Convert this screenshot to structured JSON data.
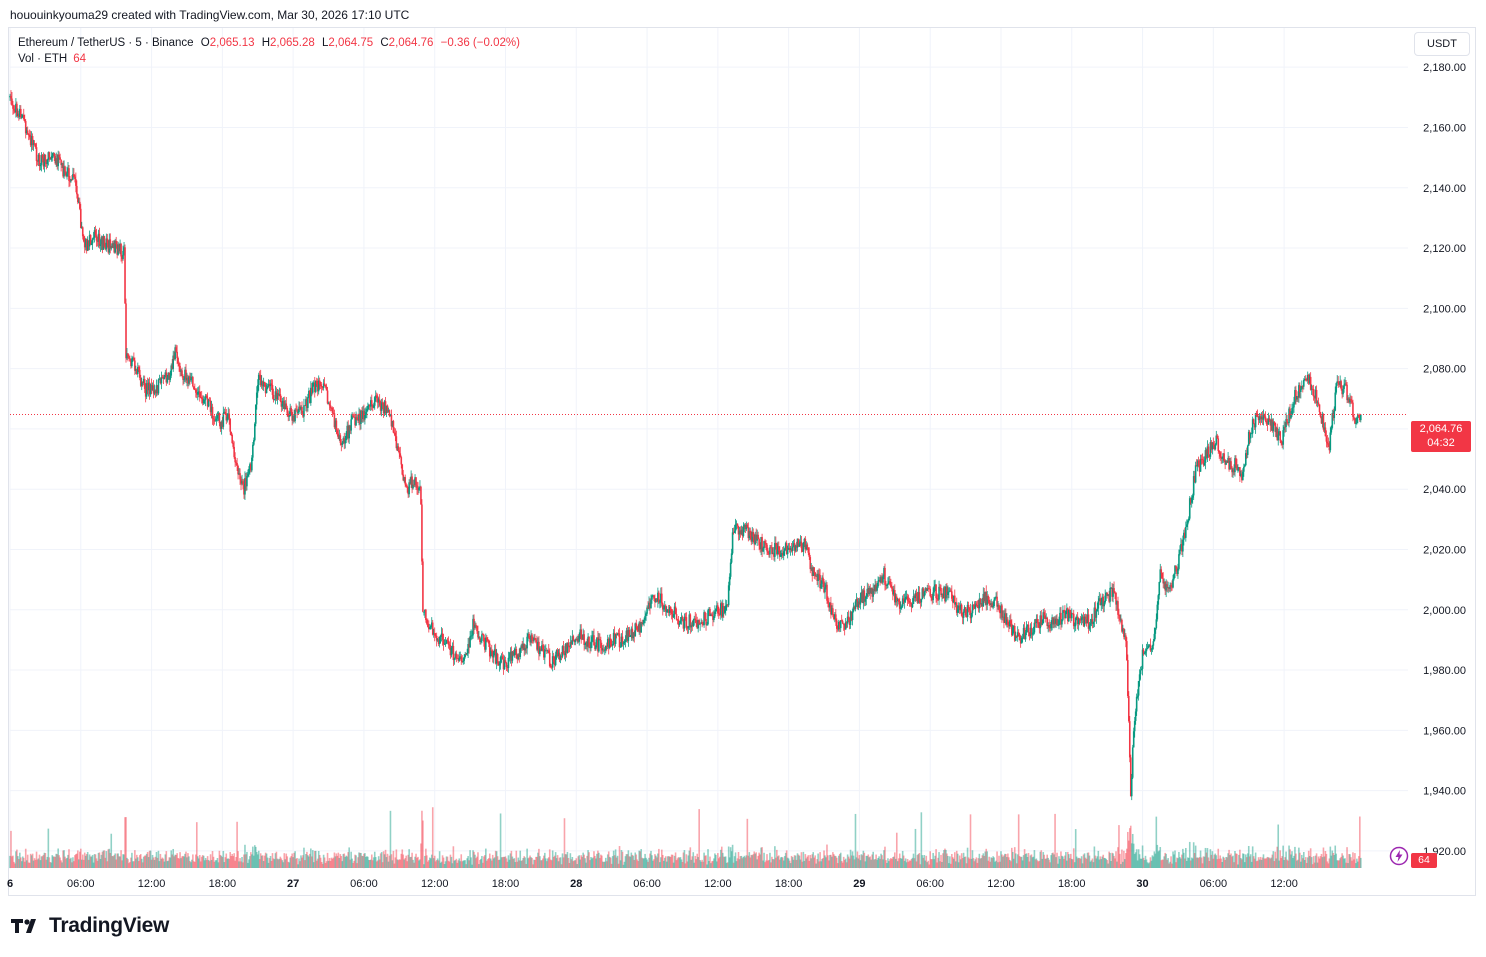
{
  "caption": "hououinkyouma29 created with TradingView.com, Mar 30, 2026 17:10 UTC",
  "legend": {
    "symbol": "Ethereum / TetherUS · 5 · Binance",
    "o_label": "O",
    "o_value": "2,065.13",
    "h_label": "H",
    "h_value": "2,065.28",
    "l_label": "L",
    "l_value": "2,064.75",
    "c_label": "C",
    "c_value": "2,064.76",
    "change": "−0.36 (−0.02%)",
    "volume_label": "Vol · ETH",
    "volume_value": "64"
  },
  "currency_button": "USDT",
  "price_tag": {
    "price": "2,064.76",
    "countdown": "04:32"
  },
  "volume_tag": "64",
  "footer": {
    "brand": "TradingView"
  },
  "colors": {
    "up": "#089981",
    "down": "#f23645",
    "grid": "#f0f3fa",
    "text": "#131722"
  },
  "chart_data": {
    "type": "candlestick",
    "title": "Ethereum / TetherUS · 5 · Binance",
    "y_ticks": [
      "2,180.00",
      "2,160.00",
      "2,140.00",
      "2,120.00",
      "2,100.00",
      "2,080.00",
      "2,060.00",
      "2,040.00",
      "2,020.00",
      "2,000.00",
      "1,980.00",
      "1,960.00",
      "1,940.00",
      "1,920.00"
    ],
    "y_tick_values": [
      2180,
      2160,
      2140,
      2120,
      2100,
      2080,
      2060,
      2040,
      2020,
      2000,
      1980,
      1960,
      1940,
      1920
    ],
    "x_ticks": [
      "6",
      "06:00",
      "12:00",
      "18:00",
      "27",
      "06:00",
      "12:00",
      "18:00",
      "28",
      "06:00",
      "12:00",
      "18:00",
      "29",
      "06:00",
      "12:00",
      "18:00",
      "30",
      "06:00",
      "12:00"
    ],
    "x_tick_hours": [
      0,
      6,
      12,
      18,
      24,
      30,
      36,
      42,
      48,
      54,
      60,
      66,
      72,
      78,
      84,
      90,
      96,
      102,
      108
    ],
    "ylim": [
      1914,
      2193
    ],
    "xlim_hours": [
      0,
      118.5
    ],
    "last_price": 2064.76,
    "price_path": [
      [
        0.0,
        2170
      ],
      [
        1.2,
        2162
      ],
      [
        2.5,
        2148
      ],
      [
        3.5,
        2152
      ],
      [
        4.5,
        2146
      ],
      [
        5.5,
        2142
      ],
      [
        6.3,
        2120
      ],
      [
        7.0,
        2124
      ],
      [
        8.2,
        2121
      ],
      [
        9.2,
        2120
      ],
      [
        9.7,
        2118
      ],
      [
        9.8,
        2084
      ],
      [
        10.5,
        2082
      ],
      [
        11.5,
        2073
      ],
      [
        12.5,
        2074
      ],
      [
        13.5,
        2078
      ],
      [
        14.0,
        2086
      ],
      [
        14.5,
        2078
      ],
      [
        15.5,
        2076
      ],
      [
        16.2,
        2070
      ],
      [
        17.0,
        2067
      ],
      [
        17.8,
        2062
      ],
      [
        18.5,
        2066
      ],
      [
        19.2,
        2046
      ],
      [
        19.8,
        2040
      ],
      [
        20.5,
        2048
      ],
      [
        21.0,
        2076
      ],
      [
        21.8,
        2074
      ],
      [
        23.0,
        2069
      ],
      [
        24.0,
        2064
      ],
      [
        24.8,
        2066
      ],
      [
        25.8,
        2074
      ],
      [
        26.5,
        2074
      ],
      [
        27.3,
        2066
      ],
      [
        28.0,
        2054
      ],
      [
        29.0,
        2062
      ],
      [
        30.0,
        2065
      ],
      [
        31.0,
        2070
      ],
      [
        31.8,
        2067
      ],
      [
        32.5,
        2060
      ],
      [
        33.0,
        2050
      ],
      [
        33.6,
        2040
      ],
      [
        34.3,
        2043
      ],
      [
        34.8,
        2040
      ],
      [
        35.0,
        2000
      ],
      [
        35.6,
        1994
      ],
      [
        36.5,
        1990
      ],
      [
        37.5,
        1986
      ],
      [
        38.5,
        1983
      ],
      [
        39.3,
        1996
      ],
      [
        40.0,
        1990
      ],
      [
        41.0,
        1985
      ],
      [
        42.0,
        1982
      ],
      [
        43.0,
        1986
      ],
      [
        44.0,
        1990
      ],
      [
        45.0,
        1986
      ],
      [
        46.0,
        1983
      ],
      [
        47.0,
        1987
      ],
      [
        48.0,
        1992
      ],
      [
        49.0,
        1990
      ],
      [
        50.0,
        1988
      ],
      [
        51.0,
        1990
      ],
      [
        52.0,
        1990
      ],
      [
        53.5,
        1995
      ],
      [
        54.5,
        2005
      ],
      [
        55.5,
        2002
      ],
      [
        57.0,
        1996
      ],
      [
        58.5,
        1996
      ],
      [
        60.0,
        2000
      ],
      [
        60.8,
        2000
      ],
      [
        61.3,
        2028
      ],
      [
        62.5,
        2026
      ],
      [
        63.5,
        2022
      ],
      [
        64.5,
        2020
      ],
      [
        65.5,
        2020
      ],
      [
        66.8,
        2022
      ],
      [
        67.5,
        2021
      ],
      [
        68.0,
        2012
      ],
      [
        69.0,
        2008
      ],
      [
        70.0,
        1995
      ],
      [
        71.0,
        1996
      ],
      [
        72.0,
        2003
      ],
      [
        73.0,
        2006
      ],
      [
        74.0,
        2012
      ],
      [
        74.8,
        2006
      ],
      [
        75.5,
        2002
      ],
      [
        76.5,
        2003
      ],
      [
        77.5,
        2005
      ],
      [
        78.5,
        2006
      ],
      [
        79.5,
        2005
      ],
      [
        80.5,
        2000
      ],
      [
        81.5,
        1999
      ],
      [
        82.5,
        2004
      ],
      [
        83.5,
        2003
      ],
      [
        84.5,
        1996
      ],
      [
        85.5,
        1990
      ],
      [
        86.5,
        1994
      ],
      [
        87.5,
        1997
      ],
      [
        88.5,
        1995
      ],
      [
        89.5,
        1999
      ],
      [
        90.5,
        1996
      ],
      [
        91.5,
        1996
      ],
      [
        92.5,
        2003
      ],
      [
        93.5,
        2006
      ],
      [
        94.0,
        1999
      ],
      [
        94.6,
        1990
      ],
      [
        95.0,
        1940
      ],
      [
        95.3,
        1964
      ],
      [
        96.0,
        1985
      ],
      [
        97.0,
        1990
      ],
      [
        97.5,
        2012
      ],
      [
        98.2,
        2006
      ],
      [
        99.0,
        2015
      ],
      [
        99.8,
        2030
      ],
      [
        100.5,
        2046
      ],
      [
        101.5,
        2052
      ],
      [
        102.3,
        2056
      ],
      [
        103.0,
        2048
      ],
      [
        103.8,
        2048
      ],
      [
        104.5,
        2045
      ],
      [
        105.0,
        2058
      ],
      [
        105.8,
        2065
      ],
      [
        106.5,
        2064
      ],
      [
        107.2,
        2060
      ],
      [
        107.8,
        2056
      ],
      [
        108.5,
        2066
      ],
      [
        109.0,
        2072
      ],
      [
        110.0,
        2076
      ],
      [
        110.8,
        2070
      ],
      [
        111.3,
        2062
      ],
      [
        111.8,
        2054
      ],
      [
        112.5,
        2076
      ],
      [
        113.3,
        2072
      ],
      [
        114.0,
        2064
      ],
      [
        114.5,
        2064.76
      ]
    ]
  }
}
